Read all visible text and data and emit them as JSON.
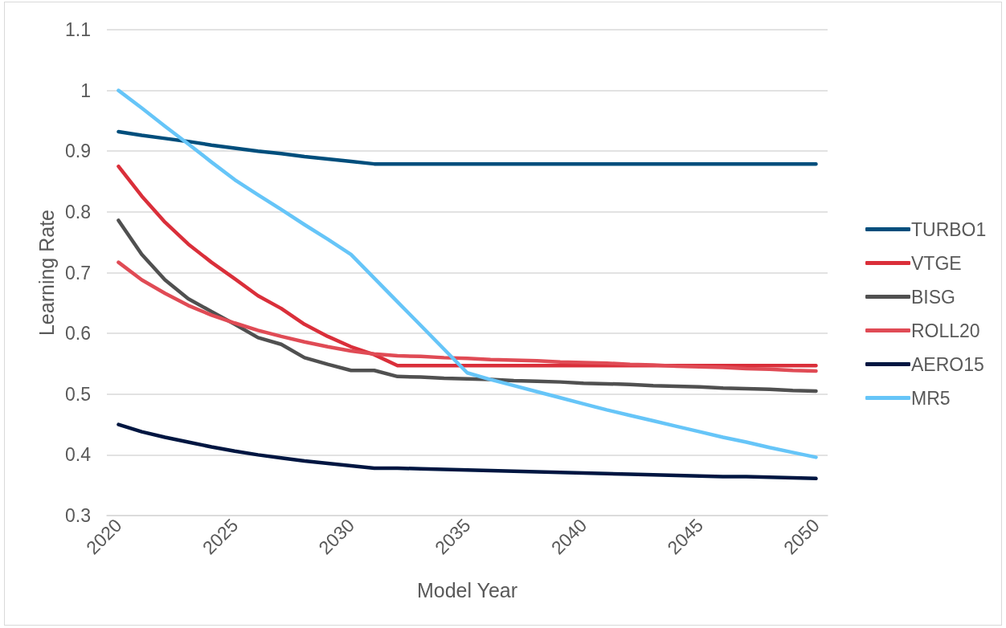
{
  "chart_data": {
    "type": "line",
    "xlabel": "Model Year",
    "ylabel": "Learning Rate",
    "categories": [
      "2020",
      null,
      null,
      null,
      null,
      "2025",
      null,
      null,
      null,
      null,
      "2030",
      null,
      null,
      null,
      null,
      "2035",
      null,
      null,
      null,
      null,
      "2040",
      null,
      null,
      null,
      null,
      "2045",
      null,
      null,
      null,
      null,
      "2050"
    ],
    "series": [
      {
        "name": "TURBO1",
        "color": "#004e7c",
        "values": [
          0.932,
          0.926,
          0.921,
          0.916,
          0.91,
          0.905,
          0.9,
          0.896,
          0.891,
          0.887,
          0.883,
          0.879,
          0.879,
          0.879,
          0.879,
          0.879,
          0.879,
          0.879,
          0.879,
          0.879,
          0.879,
          0.879,
          0.879,
          0.879,
          0.879,
          0.879,
          0.879,
          0.879,
          0.879,
          0.879,
          0.879
        ]
      },
      {
        "name": "VTGE",
        "color": "#da2f3a",
        "values": [
          0.875,
          0.826,
          0.783,
          0.747,
          0.717,
          0.69,
          0.662,
          0.641,
          0.615,
          0.595,
          0.578,
          0.565,
          0.547,
          0.547,
          0.547,
          0.547,
          0.547,
          0.547,
          0.547,
          0.547,
          0.547,
          0.547,
          0.547,
          0.547,
          0.547,
          0.547,
          0.547,
          0.547,
          0.547,
          0.547,
          0.547
        ]
      },
      {
        "name": "BISG",
        "color": "#505050",
        "values": [
          0.786,
          0.73,
          0.688,
          0.657,
          0.636,
          0.615,
          0.593,
          0.582,
          0.56,
          0.549,
          0.539,
          0.539,
          0.529,
          0.528,
          0.526,
          0.525,
          0.524,
          0.522,
          0.521,
          0.52,
          0.518,
          0.517,
          0.516,
          0.514,
          0.513,
          0.512,
          0.51,
          0.509,
          0.508,
          0.506,
          0.505
        ]
      },
      {
        "name": "ROLL20",
        "color": "#e04b55",
        "values": [
          0.717,
          0.688,
          0.666,
          0.646,
          0.63,
          0.617,
          0.605,
          0.595,
          0.586,
          0.578,
          0.571,
          0.566,
          0.563,
          0.562,
          0.56,
          0.559,
          0.557,
          0.556,
          0.555,
          0.553,
          0.552,
          0.551,
          0.549,
          0.548,
          0.546,
          0.545,
          0.544,
          0.542,
          0.541,
          0.539,
          0.538
        ]
      },
      {
        "name": "AERO15",
        "color": "#001641",
        "values": [
          0.45,
          0.438,
          0.429,
          0.421,
          0.413,
          0.406,
          0.4,
          0.395,
          0.39,
          0.386,
          0.382,
          0.378,
          0.378,
          0.377,
          0.376,
          0.375,
          0.374,
          0.373,
          0.372,
          0.371,
          0.37,
          0.369,
          0.368,
          0.367,
          0.366,
          0.365,
          0.364,
          0.364,
          0.363,
          0.362,
          0.361
        ]
      },
      {
        "name": "MR5",
        "color": "#66c5f8",
        "values": [
          1.0,
          0.971,
          0.941,
          0.912,
          0.882,
          0.853,
          0.828,
          0.804,
          0.779,
          0.755,
          0.73,
          0.691,
          0.652,
          0.613,
          0.574,
          0.535,
          0.524,
          0.514,
          0.504,
          0.494,
          0.484,
          0.474,
          0.465,
          0.456,
          0.447,
          0.438,
          0.429,
          0.421,
          0.412,
          0.404,
          0.396
        ]
      }
    ],
    "ylim": [
      0.3,
      1.1
    ],
    "yticks": [
      0.3,
      0.4,
      0.5,
      0.6,
      0.7,
      0.8,
      0.9,
      1,
      1.1
    ],
    "grid": "y",
    "legend": "right",
    "marker": "none",
    "line_style": "solid"
  }
}
